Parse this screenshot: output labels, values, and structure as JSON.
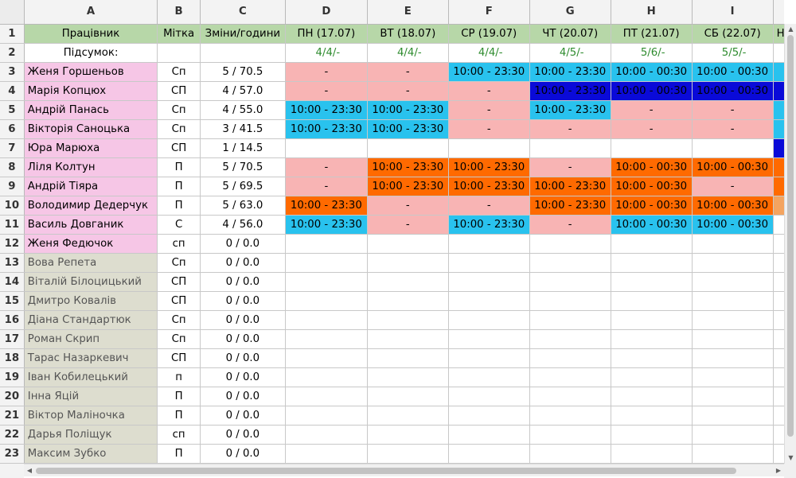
{
  "columns": [
    "A",
    "B",
    "C",
    "D",
    "E",
    "F",
    "G",
    "H",
    "I"
  ],
  "header": {
    "employee": "Працівник",
    "tag": "Мітка",
    "shifts": "Зміни/години",
    "days": [
      "ПН (17.07)",
      "ВТ (18.07)",
      "СР (19.07)",
      "ЧТ (20.07)",
      "ПТ (21.07)",
      "СБ (22.07)"
    ],
    "next_partial": "Н"
  },
  "summary": {
    "label": "Підсумок:",
    "values": [
      "4/4/-",
      "4/4/-",
      "4/4/-",
      "4/5/-",
      "5/6/-",
      "5/5/-"
    ]
  },
  "colors": {
    "header_green": "#b7d7a8",
    "employee_pink": "#f6c6e6",
    "employee_olive": "#ddddcf",
    "shift_pink": "#f8b4b4",
    "shift_blue": "#29c2ee",
    "shift_navy": "#0a0ad8",
    "shift_orange": "#ff6a00",
    "summary_green": "#2e8b2e"
  },
  "rows": [
    {
      "num": "3",
      "name": "Женя Горшеньов",
      "tag": "Сп",
      "total": "5 / 70.5",
      "style": "pink",
      "cells": [
        {
          "t": "-",
          "c": "pink"
        },
        {
          "t": "-",
          "c": "pink"
        },
        {
          "t": "10:00 - 23:30",
          "c": "blue"
        },
        {
          "t": "10:00 - 23:30",
          "c": "blue"
        },
        {
          "t": "10:00 - 00:30",
          "c": "blue"
        },
        {
          "t": "10:00 - 00:30",
          "c": "blue"
        }
      ],
      "edge": "blue"
    },
    {
      "num": "4",
      "name": "Марія Копцюх",
      "tag": "СП",
      "total": "4 / 57.0",
      "style": "pink",
      "cells": [
        {
          "t": "-",
          "c": "pink"
        },
        {
          "t": "-",
          "c": "pink"
        },
        {
          "t": "-",
          "c": "pink"
        },
        {
          "t": "10:00 - 23:30",
          "c": "navy"
        },
        {
          "t": "10:00 - 00:30",
          "c": "navy"
        },
        {
          "t": "10:00 - 00:30",
          "c": "navy"
        }
      ],
      "edge": "navy"
    },
    {
      "num": "5",
      "name": "Андрій Панась",
      "tag": "Сп",
      "total": "4 / 55.0",
      "style": "pink",
      "cells": [
        {
          "t": "10:00 - 23:30",
          "c": "blue"
        },
        {
          "t": "10:00 - 23:30",
          "c": "blue"
        },
        {
          "t": "-",
          "c": "pink"
        },
        {
          "t": "10:00 - 23:30",
          "c": "blue"
        },
        {
          "t": "-",
          "c": "pink"
        },
        {
          "t": "-",
          "c": "pink"
        }
      ],
      "edge": "blue"
    },
    {
      "num": "6",
      "name": "Вікторія Саноцька",
      "tag": "Сп",
      "total": "3 / 41.5",
      "style": "pink",
      "cells": [
        {
          "t": "10:00 - 23:30",
          "c": "blue"
        },
        {
          "t": "10:00 - 23:30",
          "c": "blue"
        },
        {
          "t": "-",
          "c": "pink"
        },
        {
          "t": "-",
          "c": "pink"
        },
        {
          "t": "-",
          "c": "pink"
        },
        {
          "t": "-",
          "c": "pink"
        }
      ],
      "edge": "blue"
    },
    {
      "num": "7",
      "name": "Юра Марюха",
      "tag": "СП",
      "total": "1 / 14.5",
      "style": "pink",
      "cells": [
        {
          "t": "",
          "c": "white"
        },
        {
          "t": "",
          "c": "white"
        },
        {
          "t": "",
          "c": "white"
        },
        {
          "t": "",
          "c": "white"
        },
        {
          "t": "",
          "c": "white"
        },
        {
          "t": "",
          "c": "white"
        }
      ],
      "edge": "navy"
    },
    {
      "num": "8",
      "name": "Ліля Колтун",
      "tag": "П",
      "total": "5 / 70.5",
      "style": "pink",
      "cells": [
        {
          "t": "-",
          "c": "pink"
        },
        {
          "t": "10:00 - 23:30",
          "c": "orange"
        },
        {
          "t": "10:00 - 23:30",
          "c": "orange"
        },
        {
          "t": "-",
          "c": "pink"
        },
        {
          "t": "10:00 - 00:30",
          "c": "orange"
        },
        {
          "t": "10:00 - 00:30",
          "c": "orange"
        }
      ],
      "edge": "orange"
    },
    {
      "num": "9",
      "name": "Андрій Тіяра",
      "tag": "П",
      "total": "5 / 69.5",
      "style": "pink",
      "cells": [
        {
          "t": "-",
          "c": "pink"
        },
        {
          "t": "10:00 - 23:30",
          "c": "orange"
        },
        {
          "t": "10:00 - 23:30",
          "c": "orange"
        },
        {
          "t": "10:00 - 23:30",
          "c": "orange"
        },
        {
          "t": "10:00 - 00:30",
          "c": "orange"
        },
        {
          "t": "-",
          "c": "pink"
        }
      ],
      "edge": "orange"
    },
    {
      "num": "10",
      "name": "Володимир Дедерчук",
      "tag": "П",
      "total": "5 / 63.0",
      "style": "pink",
      "cells": [
        {
          "t": "10:00 - 23:30",
          "c": "orange"
        },
        {
          "t": "-",
          "c": "pink"
        },
        {
          "t": "-",
          "c": "pink"
        },
        {
          "t": "10:00 - 23:30",
          "c": "orange"
        },
        {
          "t": "10:00 - 00:30",
          "c": "orange"
        },
        {
          "t": "10:00 - 00:30",
          "c": "orange"
        }
      ],
      "edge": "peach"
    },
    {
      "num": "11",
      "name": "Василь Довганик",
      "tag": "С",
      "total": "4 / 56.0",
      "style": "pink",
      "cells": [
        {
          "t": "10:00 - 23:30",
          "c": "blue"
        },
        {
          "t": "-",
          "c": "pink"
        },
        {
          "t": "10:00 - 23:30",
          "c": "blue"
        },
        {
          "t": "-",
          "c": "pink"
        },
        {
          "t": "10:00 - 00:30",
          "c": "blue"
        },
        {
          "t": "10:00 - 00:30",
          "c": "blue"
        }
      ],
      "edge": "white"
    },
    {
      "num": "12",
      "name": "Женя Федючок",
      "tag": "сп",
      "total": "0 / 0.0",
      "style": "pink",
      "cells": [],
      "edge": "white"
    },
    {
      "num": "13",
      "name": "Вова Репета",
      "tag": "Сп",
      "total": "0 / 0.0",
      "style": "olive",
      "cells": [],
      "edge": "white"
    },
    {
      "num": "14",
      "name": "Віталій Білоцицький",
      "tag": "СП",
      "total": "0 / 0.0",
      "style": "olive",
      "cells": [],
      "edge": "white"
    },
    {
      "num": "15",
      "name": "Дмитро Ковалів",
      "tag": "СП",
      "total": "0 / 0.0",
      "style": "olive",
      "cells": [],
      "edge": "white"
    },
    {
      "num": "16",
      "name": "Діана Стандартюк",
      "tag": "Сп",
      "total": "0 / 0.0",
      "style": "olive",
      "cells": [],
      "edge": "white"
    },
    {
      "num": "17",
      "name": "Роман Скрип",
      "tag": "Сп",
      "total": "0 / 0.0",
      "style": "olive",
      "cells": [],
      "edge": "white"
    },
    {
      "num": "18",
      "name": "Тарас Назаркевич",
      "tag": "СП",
      "total": "0 / 0.0",
      "style": "olive",
      "cells": [],
      "edge": "white"
    },
    {
      "num": "19",
      "name": "Іван Кобилецький",
      "tag": "п",
      "total": "0 / 0.0",
      "style": "olive",
      "cells": [],
      "edge": "white"
    },
    {
      "num": "20",
      "name": "Інна Яцій",
      "tag": "П",
      "total": "0 / 0.0",
      "style": "olive",
      "cells": [],
      "edge": "white"
    },
    {
      "num": "21",
      "name": "Віктор Маліночка",
      "tag": "П",
      "total": "0 / 0.0",
      "style": "olive",
      "cells": [],
      "edge": "white"
    },
    {
      "num": "22",
      "name": "Дарья Поліщук",
      "tag": "сп",
      "total": "0 / 0.0",
      "style": "olive",
      "cells": [],
      "edge": "white"
    },
    {
      "num": "23",
      "name": "Максим Зубко",
      "tag": "П",
      "total": "0 / 0.0",
      "style": "olive",
      "cells": [],
      "edge": "white"
    }
  ],
  "row_numbers": {
    "header": "1",
    "summary": "2"
  },
  "scrollbars": {
    "up_icon": "triangle-up-icon",
    "down_icon": "triangle-down-icon",
    "left_icon": "triangle-left-icon",
    "right_icon": "triangle-right-icon"
  }
}
